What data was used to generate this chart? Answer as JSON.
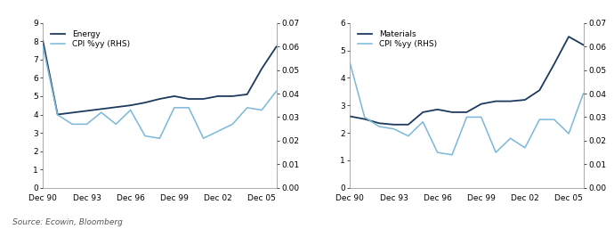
{
  "x_labels": [
    "Dec 90",
    "Dec 93",
    "Dec 96",
    "Dec 99",
    "Dec 02",
    "Dec 05"
  ],
  "x_ticks": [
    0,
    3,
    6,
    9,
    12,
    15
  ],
  "energy_x": [
    0,
    1,
    2,
    3,
    4,
    5,
    6,
    7,
    8,
    9,
    10,
    11,
    12,
    13,
    14,
    15,
    16
  ],
  "energy_y": [
    8.0,
    4.0,
    4.1,
    4.2,
    4.3,
    4.4,
    4.5,
    4.65,
    4.85,
    5.0,
    4.85,
    4.85,
    5.0,
    5.0,
    5.1,
    6.5,
    7.7
  ],
  "energy_cpi_x": [
    0,
    1,
    2,
    3,
    4,
    5,
    6,
    7,
    8,
    9,
    10,
    11,
    12,
    13,
    14,
    15,
    16
  ],
  "energy_cpi_y": [
    0.06,
    0.031,
    0.027,
    0.027,
    0.032,
    0.027,
    0.033,
    0.022,
    0.021,
    0.034,
    0.034,
    0.021,
    0.024,
    0.027,
    0.034,
    0.033,
    0.041
  ],
  "materials_x": [
    0,
    1,
    2,
    3,
    4,
    5,
    6,
    7,
    8,
    9,
    10,
    11,
    12,
    13,
    14,
    15,
    16
  ],
  "materials_y": [
    2.6,
    2.5,
    2.35,
    2.3,
    2.3,
    2.75,
    2.85,
    2.75,
    2.75,
    3.05,
    3.15,
    3.15,
    3.2,
    3.55,
    4.5,
    5.5,
    5.2
  ],
  "materials_cpi_x": [
    0,
    1,
    2,
    3,
    4,
    5,
    6,
    7,
    8,
    9,
    10,
    11,
    12,
    13,
    14,
    15,
    16
  ],
  "materials_cpi_y": [
    0.053,
    0.03,
    0.026,
    0.025,
    0.022,
    0.028,
    0.015,
    0.014,
    0.03,
    0.03,
    0.015,
    0.021,
    0.017,
    0.029,
    0.029,
    0.023,
    0.04
  ],
  "energy_ylim": [
    0,
    9
  ],
  "energy_yticks": [
    0,
    1,
    2,
    3,
    4,
    5,
    6,
    7,
    8,
    9
  ],
  "energy_rhs_ylim": [
    0.0,
    0.07
  ],
  "energy_rhs_yticks": [
    0.0,
    0.01,
    0.02,
    0.03,
    0.04,
    0.05,
    0.06,
    0.07
  ],
  "materials_ylim": [
    0,
    6
  ],
  "materials_yticks": [
    0,
    1,
    2,
    3,
    4,
    5,
    6
  ],
  "materials_rhs_ylim": [
    0.0,
    0.07
  ],
  "materials_rhs_yticks": [
    0.0,
    0.01,
    0.02,
    0.03,
    0.04,
    0.05,
    0.06,
    0.07
  ],
  "dark_blue": "#1c3a5e",
  "light_blue": "#7ab8d9",
  "source_text": "Source: Ecowin, Bloomberg",
  "energy_label": "Energy",
  "materials_label": "Materials",
  "cpi_label": "CPI %yy (RHS)"
}
